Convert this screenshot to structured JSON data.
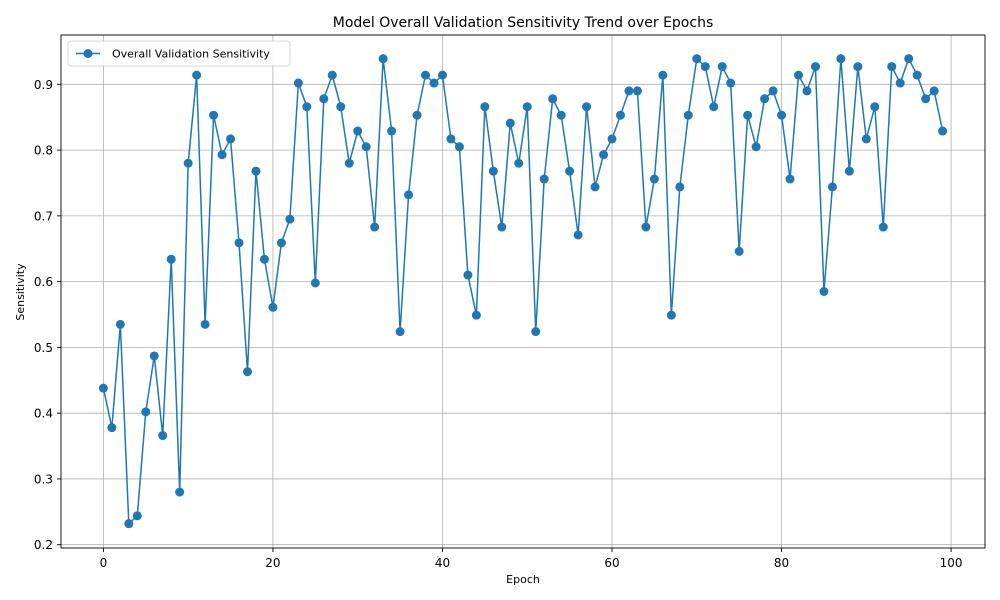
{
  "chart_data": {
    "type": "line",
    "title": "Model Overall Validation Sensitivity Trend over Epochs",
    "xlabel": "Epoch",
    "ylabel": "Sensitivity",
    "xlim": [
      -5,
      104
    ],
    "ylim": [
      0.195,
      0.975
    ],
    "xticks": [
      0,
      20,
      40,
      60,
      80,
      100
    ],
    "yticks": [
      0.2,
      0.3,
      0.4,
      0.5,
      0.6,
      0.7,
      0.8,
      0.9
    ],
    "grid": true,
    "legend_position": "top-left",
    "series": [
      {
        "name": "Overall Validation Sensitivity",
        "color": "#1f77b4",
        "marker": "circle",
        "x": [
          0,
          1,
          2,
          3,
          4,
          5,
          6,
          7,
          8,
          9,
          10,
          11,
          12,
          13,
          14,
          15,
          16,
          17,
          18,
          19,
          20,
          21,
          22,
          23,
          24,
          25,
          26,
          27,
          28,
          29,
          30,
          31,
          32,
          33,
          34,
          35,
          36,
          37,
          38,
          39,
          40,
          41,
          42,
          43,
          44,
          45,
          46,
          47,
          48,
          49,
          50,
          51,
          52,
          53,
          54,
          55,
          56,
          57,
          58,
          59,
          60,
          61,
          62,
          63,
          64,
          65,
          66,
          67,
          68,
          69,
          70,
          71,
          72,
          73,
          74,
          75,
          76,
          77,
          78,
          79,
          80,
          81,
          82,
          83,
          84,
          85,
          86,
          87,
          88,
          89,
          90,
          91,
          92,
          93,
          94,
          95,
          96,
          97,
          98,
          99
        ],
        "y": [
          0.438,
          0.378,
          0.535,
          0.232,
          0.244,
          0.402,
          0.487,
          0.366,
          0.634,
          0.28,
          0.78,
          0.914,
          0.535,
          0.853,
          0.793,
          0.817,
          0.659,
          0.463,
          0.768,
          0.634,
          0.561,
          0.659,
          0.695,
          0.902,
          0.866,
          0.598,
          0.878,
          0.914,
          0.866,
          0.78,
          0.829,
          0.805,
          0.683,
          0.939,
          0.829,
          0.524,
          0.732,
          0.853,
          0.914,
          0.902,
          0.914,
          0.817,
          0.805,
          0.61,
          0.549,
          0.866,
          0.768,
          0.683,
          0.841,
          0.78,
          0.866,
          0.524,
          0.756,
          0.878,
          0.853,
          0.768,
          0.671,
          0.866,
          0.744,
          0.793,
          0.817,
          0.853,
          0.89,
          0.89,
          0.683,
          0.756,
          0.914,
          0.549,
          0.744,
          0.853,
          0.939,
          0.927,
          0.866,
          0.927,
          0.902,
          0.646,
          0.853,
          0.805,
          0.878,
          0.89,
          0.853,
          0.756,
          0.914,
          0.89,
          0.927,
          0.585,
          0.744,
          0.939,
          0.768,
          0.927,
          0.817,
          0.866,
          0.683,
          0.927,
          0.902,
          0.939,
          0.914,
          0.878,
          0.89,
          0.829
        ]
      }
    ]
  }
}
